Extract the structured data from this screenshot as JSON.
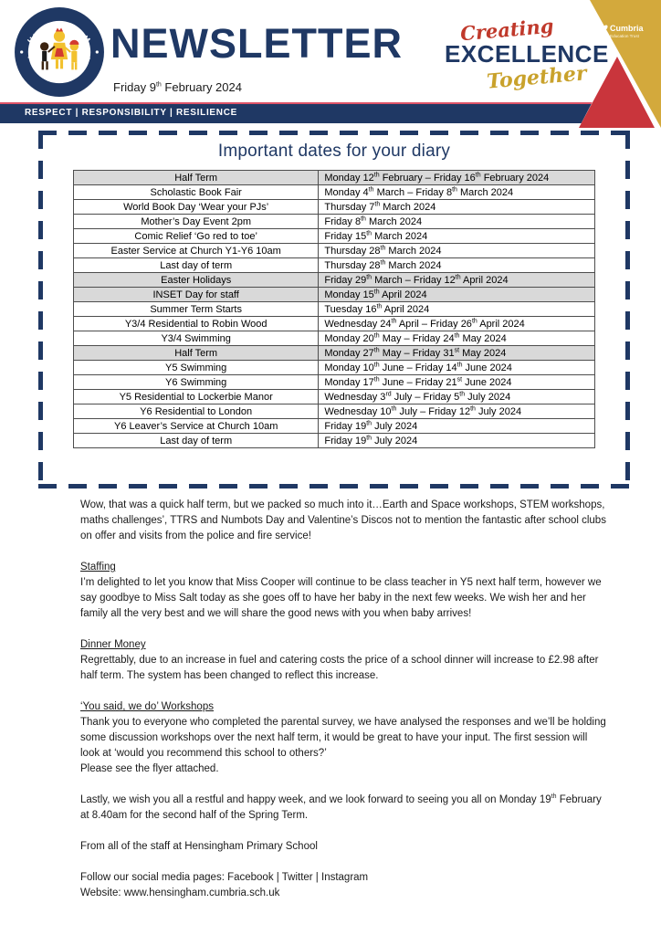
{
  "colors": {
    "navy": "#1f3864",
    "red": "#c9353c",
    "gold": "#d3a93c",
    "pink_line": "#dd5468",
    "table_header_gray": "#d9d9d9",
    "brand_red": "#c0392b",
    "brand_gold": "#c9a22c"
  },
  "header": {
    "school_badge_top": "HENSINGHAM",
    "school_badge_bottom": "PRIMARY SCHOOL",
    "title": "NEWSLETTER",
    "date": "Friday 9th February 2024",
    "brand": {
      "creating": "Creating",
      "excellence": "EXCELLENCE",
      "together": "Together"
    },
    "trust": {
      "name": "Cumbria",
      "subtitle": "Education Trust"
    }
  },
  "values_banner": {
    "text": "RESPECT | RESPONSIBILITY | RESILIENCE"
  },
  "diary": {
    "title": "Important dates for your diary",
    "rows": [
      {
        "event": "Half Term",
        "date": "Monday 12th February – Friday 16th February 2024",
        "highlight": true
      },
      {
        "event": "Scholastic Book Fair",
        "date": "Monday 4th March – Friday 8th March 2024",
        "highlight": false
      },
      {
        "event": "World Book Day ‘Wear your PJs’",
        "date": "Thursday 7th March 2024",
        "highlight": false
      },
      {
        "event": "Mother’s Day Event 2pm",
        "date": "Friday 8th March 2024",
        "highlight": false
      },
      {
        "event": "Comic Relief ‘Go red to toe’",
        "date": "Friday 15th March 2024",
        "highlight": false
      },
      {
        "event": "Easter Service at Church Y1-Y6 10am",
        "date": "Thursday 28th March 2024",
        "highlight": false
      },
      {
        "event": "Last day of term",
        "date": "Thursday 28th March 2024",
        "highlight": false
      },
      {
        "event": "Easter Holidays",
        "date": "Friday 29th March – Friday 12th April 2024",
        "highlight": true
      },
      {
        "event": "INSET Day for staff",
        "date": "Monday 15th April 2024",
        "highlight": true
      },
      {
        "event": "Summer Term Starts",
        "date": "Tuesday 16th April 2024",
        "highlight": false
      },
      {
        "event": "Y3/4 Residential to Robin Wood",
        "date": "Wednesday 24th April – Friday 26th April 2024",
        "highlight": false
      },
      {
        "event": "Y3/4 Swimming",
        "date": "Monday 20th May – Friday 24th May 2024",
        "highlight": false
      },
      {
        "event": "Half Term",
        "date": "Monday 27th May – Friday 31st May 2024",
        "highlight": true
      },
      {
        "event": "Y5 Swimming",
        "date": "Monday 10th June – Friday 14th June 2024",
        "highlight": false
      },
      {
        "event": "Y6 Swimming",
        "date": "Monday 17th June – Friday 21st June 2024",
        "highlight": false
      },
      {
        "event": "Y5 Residential to Lockerbie Manor",
        "date": "Wednesday 3rd July – Friday 5th July 2024",
        "highlight": false
      },
      {
        "event": "Y6 Residential to London",
        "date": "Wednesday 10th July – Friday 12th July 2024",
        "highlight": false
      },
      {
        "event": "Y6 Leaver’s Service at Church 10am",
        "date": "Friday 19th July 2024",
        "highlight": false
      },
      {
        "event": "Last day of term",
        "date": "Friday 19th July 2024",
        "highlight": false
      }
    ]
  },
  "body": {
    "sections": [
      {
        "heading": "",
        "paras": [
          "Wow, that was a quick half term, but we packed so much into it…Earth and Space workshops, STEM workshops, maths challenges’, TTRS and Numbots Day and Valentine’s Discos not to mention the fantastic after school clubs on offer and visits from the police and fire service!"
        ]
      },
      {
        "heading": "Staffing",
        "paras": [
          "I’m delighted to let you know that Miss Cooper will continue to be class teacher in Y5 next half term, however we say goodbye to Miss Salt today as she goes off to have her baby in the next few weeks. We wish her and her family all the very best and we will share the good news with you when baby arrives!"
        ]
      },
      {
        "heading": "Dinner Money",
        "paras": [
          "Regrettably, due to an increase in fuel and catering costs the price of a school dinner will increase to £2.98 after half term. The system has been changed to reflect this increase."
        ]
      },
      {
        "heading": "‘You said, we do’ Workshops",
        "paras": [
          "Thank you to everyone who completed the parental survey, we have analysed the responses and we’ll be holding some discussion workshops over the next half term, it would be great to have your input.  The first session will look at ‘would you recommend this school to others?’",
          "Please see the flyer attached."
        ]
      },
      {
        "heading": "",
        "paras": [
          "Lastly, we wish you all a restful and happy week, and we look forward to seeing you all on Monday 19th February at 8.40am for the second half of the Spring Term."
        ]
      },
      {
        "heading": "",
        "paras": [
          "From all of the staff at Hensingham Primary School"
        ]
      },
      {
        "heading": "",
        "paras": [
          "Follow our social media pages: Facebook | Twitter | Instagram",
          "Website: www.hensingham.cumbria.sch.uk"
        ]
      }
    ]
  }
}
